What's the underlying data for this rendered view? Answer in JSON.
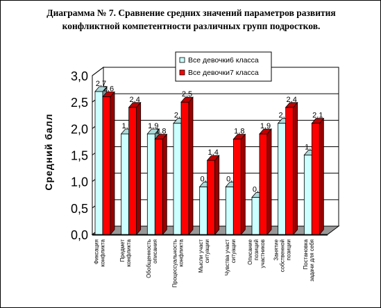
{
  "chart_data": {
    "type": "bar",
    "style": "3d-clustered-column",
    "title_lines": [
      "Диаграмма № 7.   Сравнение средних значений параметров  развития",
      "конфликтной компетентности различных групп подростков."
    ],
    "ylabel": "Средний балл",
    "xlabel": "",
    "ylim": [
      0,
      3.0
    ],
    "yticks": [
      "0,0",
      "0,5",
      "1,0",
      "1,5",
      "2,0",
      "2,5",
      "3,0"
    ],
    "grid": true,
    "legend_position": "top-right",
    "categories": [
      [
        "Фиксация",
        "конфликта"
      ],
      [
        "Предмет",
        "конфликта"
      ],
      [
        "Обобщенность",
        "описания"
      ],
      [
        "Процессуальность",
        "конфликта"
      ],
      [
        "Мысли участ",
        "ситуации"
      ],
      [
        "Чувства участ",
        "ситуации"
      ],
      [
        "Описание",
        "позиций",
        "участников"
      ],
      [
        "Занятие",
        "собственной",
        "позиции"
      ],
      [
        "Постановка",
        "задачи для себя"
      ]
    ],
    "series": [
      {
        "name": "Все девочки6 класса",
        "color": "#CCFFFF",
        "values": [
          2.7,
          1.9,
          1.9,
          2.1,
          0.9,
          0.9,
          0.7,
          2.1,
          1.5
        ],
        "labels": [
          "2,7",
          "1,9",
          "1,9",
          "2,1",
          "0,9",
          "0,9",
          "0,7",
          "2,1",
          "1,5"
        ]
      },
      {
        "name": "Все девочки7 класса",
        "color": "#FF0000",
        "values": [
          2.6,
          2.4,
          1.8,
          2.5,
          1.4,
          1.8,
          1.9,
          2.4,
          2.1
        ],
        "labels": [
          "2,6",
          "2,4",
          "1,8",
          "2,5",
          "1,4",
          "1,8",
          "1,9",
          "2,4",
          "2,1"
        ]
      }
    ]
  }
}
